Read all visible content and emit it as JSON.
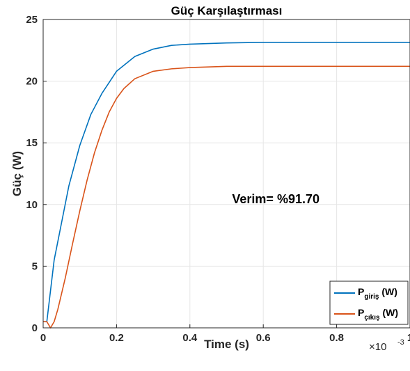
{
  "chart_data": {
    "type": "line",
    "title": "Güç Karşılaştırması",
    "xlabel": "Time (s)",
    "ylabel": "Güç (W)",
    "x_exponent_label": "×10",
    "x_exponent_power": "-3",
    "xlim": [
      0,
      1
    ],
    "ylim": [
      0,
      25
    ],
    "xticks": [
      0,
      0.2,
      0.4,
      0.6,
      0.8,
      1
    ],
    "xtick_labels": [
      "0",
      "0.2",
      "0.4",
      "0.6",
      "0.8",
      "1"
    ],
    "yticks": [
      0,
      5,
      10,
      15,
      20,
      25
    ],
    "ytick_labels": [
      "0",
      "5",
      "10",
      "15",
      "20",
      "25"
    ],
    "grid": true,
    "legend_position": "bottom-right",
    "annotation": "Verim= %91.70",
    "series": [
      {
        "name": "P",
        "name_sub": "giriş",
        "name_suffix": " (W)",
        "color": "#0072BD",
        "x": [
          0,
          0.01,
          0.02,
          0.03,
          0.05,
          0.07,
          0.1,
          0.13,
          0.16,
          0.2,
          0.25,
          0.3,
          0.35,
          0.4,
          0.5,
          0.6,
          0.7,
          0.8,
          0.9,
          1.0
        ],
        "y": [
          0.5,
          0.5,
          3.0,
          5.5,
          8.5,
          11.5,
          14.8,
          17.3,
          19.0,
          20.8,
          22.0,
          22.6,
          22.9,
          23.0,
          23.1,
          23.15,
          23.15,
          23.15,
          23.15,
          23.15
        ]
      },
      {
        "name": "P",
        "name_sub": "çıkış",
        "name_suffix": " (W)",
        "color": "#D95319",
        "x": [
          0,
          0.01,
          0.02,
          0.03,
          0.04,
          0.06,
          0.08,
          0.1,
          0.12,
          0.14,
          0.16,
          0.18,
          0.2,
          0.22,
          0.25,
          0.3,
          0.35,
          0.4,
          0.5,
          0.6,
          0.7,
          0.8,
          0.9,
          1.0
        ],
        "y": [
          0.5,
          0.5,
          0.0,
          0.5,
          1.5,
          4.0,
          6.8,
          9.5,
          12.0,
          14.2,
          16.0,
          17.5,
          18.6,
          19.4,
          20.2,
          20.8,
          21.0,
          21.1,
          21.2,
          21.2,
          21.2,
          21.2,
          21.2,
          21.2
        ]
      }
    ]
  }
}
